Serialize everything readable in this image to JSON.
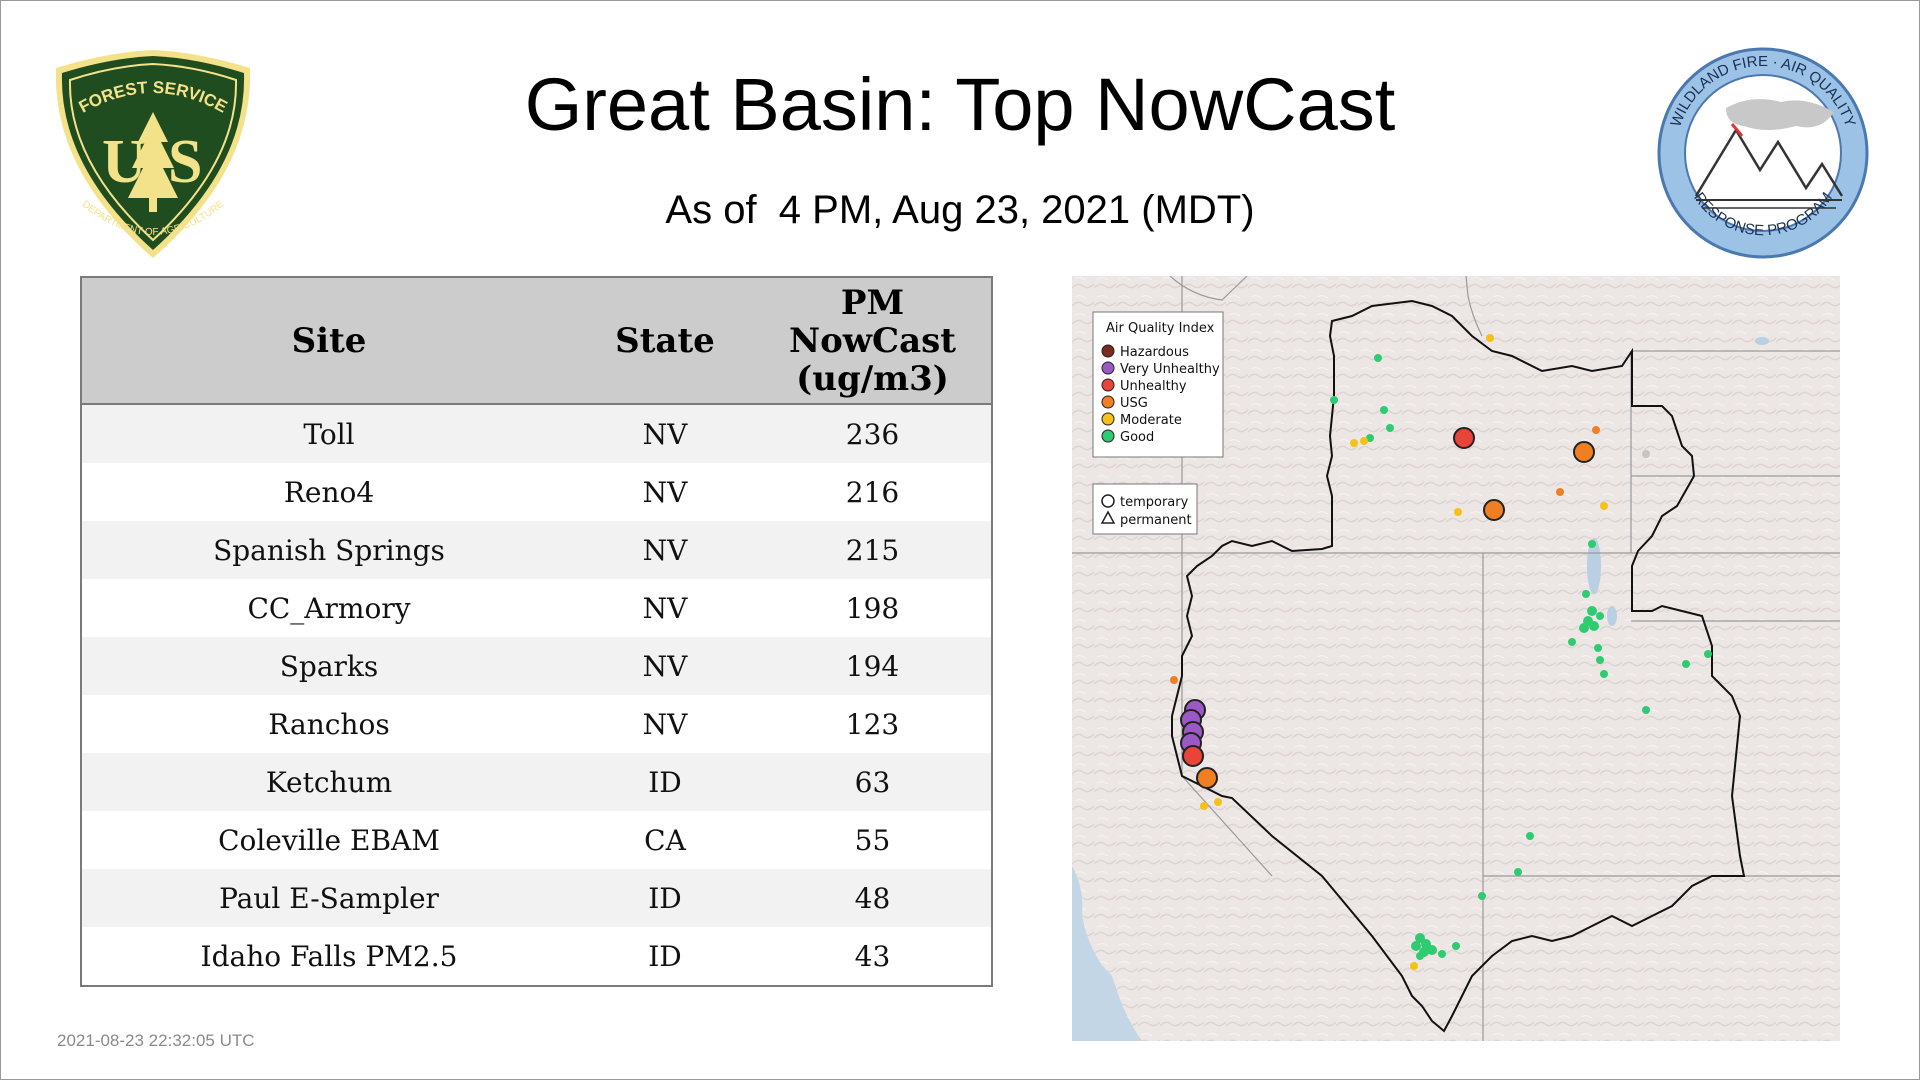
{
  "header": {
    "title": "Great Basin: Top NowCast",
    "subtitle": "As of  4 PM, Aug 23, 2021 (MDT)"
  },
  "logos": {
    "usfs": {
      "top_text": "FOREST SERVICE",
      "letters": "US",
      "bottom_text": "DEPARTMENT OF AGRICULTURE"
    },
    "wfa": {
      "top_text": "WILDLAND FIRE · AIR QUALITY",
      "bottom_text": "RESPONSE PROGRAM"
    }
  },
  "table": {
    "headers": [
      "Site",
      "State",
      "PM NowCast (ug/m3)"
    ],
    "header_lines": {
      "pm": [
        "PM",
        "NowCast",
        "(ug/m3)"
      ]
    },
    "rows": [
      {
        "site": "Toll",
        "state": "NV",
        "value": "236"
      },
      {
        "site": "Reno4",
        "state": "NV",
        "value": "216"
      },
      {
        "site": "Spanish Springs",
        "state": "NV",
        "value": "215"
      },
      {
        "site": "CC_Armory",
        "state": "NV",
        "value": "198"
      },
      {
        "site": "Sparks",
        "state": "NV",
        "value": "194"
      },
      {
        "site": "Ranchos",
        "state": "NV",
        "value": "123"
      },
      {
        "site": "Ketchum",
        "state": "ID",
        "value": "63"
      },
      {
        "site": "Coleville EBAM",
        "state": "CA",
        "value": "55"
      },
      {
        "site": "Paul E-Sampler",
        "state": "ID",
        "value": "48"
      },
      {
        "site": "Idaho Falls PM2.5",
        "state": "ID",
        "value": "43"
      }
    ]
  },
  "map": {
    "legend": {
      "title": "Air Quality Index",
      "items": [
        {
          "label": "Hazardous",
          "color": "#7a2a1e"
        },
        {
          "label": "Very Unhealthy",
          "color": "#9b59c6"
        },
        {
          "label": "Unhealthy",
          "color": "#e8443a"
        },
        {
          "label": "USG",
          "color": "#f07f22"
        },
        {
          "label": "Moderate",
          "color": "#f5c116"
        },
        {
          "label": "Good",
          "color": "#2ecc71"
        }
      ]
    },
    "shape_legend": {
      "temporary": "temporary",
      "permanent": "permanent"
    }
  },
  "footer": {
    "timestamp": "2021-08-23 22:32:05 UTC"
  }
}
